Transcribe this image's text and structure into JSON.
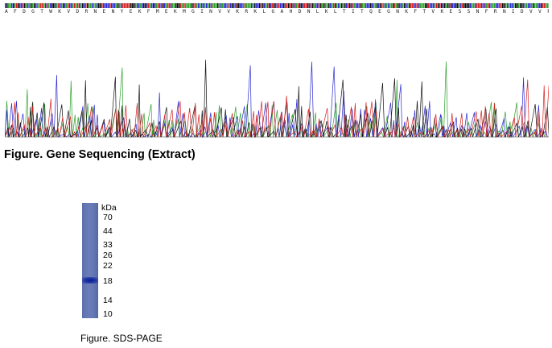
{
  "sequence": {
    "protein": "A F D G T W K V D R N E N Y E K F M E K M G I N V V K R K L G A H D N L K L T I T Q E G N K F T V K E S S N F R N I D V V F E L G V D F A Y S L A D G T E L T G T W T M E G N K L V G K F K R V D N G K E L I",
    "base_colors": {
      "A": "#2ea02e",
      "C": "#2a2ad0",
      "G": "#111111",
      "T": "#d62020"
    }
  },
  "figure1": {
    "caption": "Figure. Gene Sequencing (Extract)"
  },
  "gel": {
    "unit_label": "kDa",
    "markers": [
      {
        "label": "70",
        "kda": 70
      },
      {
        "label": "44",
        "kda": 44
      },
      {
        "label": "33",
        "kda": 33
      },
      {
        "label": "26",
        "kda": 26
      },
      {
        "label": "22",
        "kda": 22
      },
      {
        "label": "18",
        "kda": 18
      },
      {
        "label": "14",
        "kda": 14
      },
      {
        "label": "10",
        "kda": 10
      }
    ],
    "band_kda": 18,
    "lane_color": "#6478b5",
    "band_color": "#14279a"
  },
  "figure2": {
    "caption": "Figure. SDS-PAGE"
  }
}
